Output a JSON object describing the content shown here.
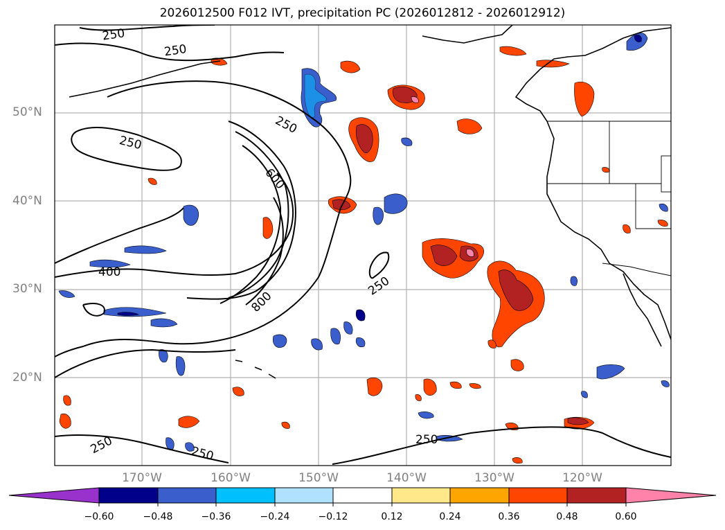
{
  "title": "2026012500 F012 IVT, precipitation PC (2026012812 - 2026012912)",
  "lat_labels": [
    "50°N",
    "40°N",
    "30°N",
    "20°N"
  ],
  "lon_labels": [
    "170°W",
    "160°W",
    "150°W",
    "140°W",
    "130°W",
    "120°W"
  ],
  "contour_labels": [
    "250",
    "250",
    "250",
    "250",
    "600",
    "400",
    "800",
    "250",
    "250",
    "250",
    "250"
  ],
  "colorbar": {
    "ticks": [
      "−0.60",
      "−0.48",
      "−0.36",
      "−0.24",
      "−0.12",
      "0.12",
      "0.24",
      "0.36",
      "0.48",
      "0.60"
    ],
    "colors": [
      "#9932cc",
      "#00008b",
      "#3a5fcd",
      "#00bfff",
      "#b0e2ff",
      "#ffffff",
      "#ffe88a",
      "#ffa500",
      "#ff4500",
      "#b22222",
      "#ff82ab"
    ]
  }
}
